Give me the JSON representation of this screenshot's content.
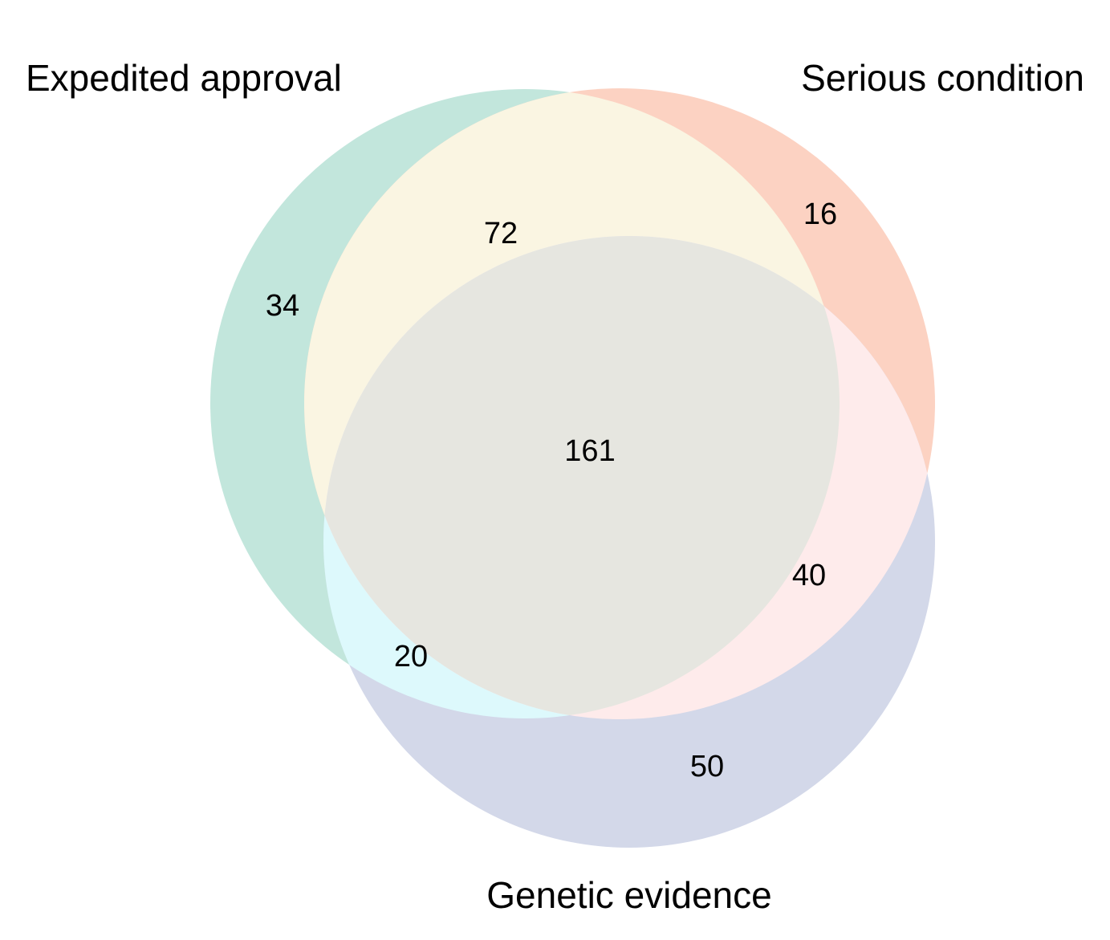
{
  "sets": {
    "expedited": {
      "label": "Expedited approval",
      "color": "#c2e6dc"
    },
    "serious": {
      "label": "Serious condition",
      "color": "#fcd2c2"
    },
    "genetic": {
      "label": "Genetic evidence",
      "color": "#d3d8e9"
    }
  },
  "overlap_colors": {
    "expedited_serious": "#faf5e2",
    "expedited_genetic": "#ddf9fc",
    "serious_genetic": "#feebeb",
    "all_three": "#e6e6e0"
  },
  "regions": {
    "expedited_only": "34",
    "serious_only": "16",
    "genetic_only": "50",
    "expedited_serious": "72",
    "expedited_genetic": "20",
    "serious_genetic": "40",
    "all_three": "161"
  }
}
